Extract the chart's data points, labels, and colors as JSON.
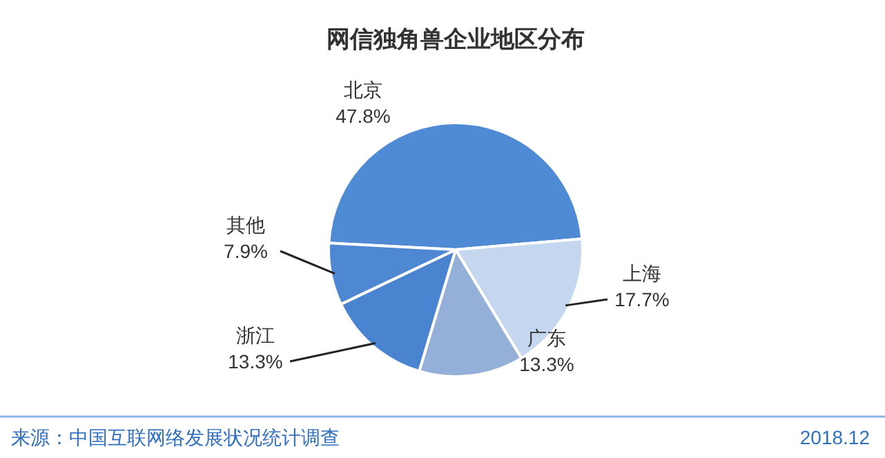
{
  "chart_data": {
    "type": "pie",
    "title": "网信独角兽企业地区分布",
    "categories": [
      "北京",
      "上海",
      "广东",
      "浙江",
      "其他"
    ],
    "values": [
      47.8,
      17.7,
      13.3,
      13.3,
      7.9
    ],
    "colors": [
      "#4f8ad4",
      "#c5d6ef",
      "#94b0d8",
      "#4a84d0",
      "#4f88d2"
    ],
    "value_labels": [
      "47.8%",
      "17.7%",
      "13.3%",
      "13.3%",
      "7.9%"
    ],
    "legend": false,
    "annotations": [
      "来源：中国互联网络发展状况统计调查",
      "2018.12"
    ]
  }
}
